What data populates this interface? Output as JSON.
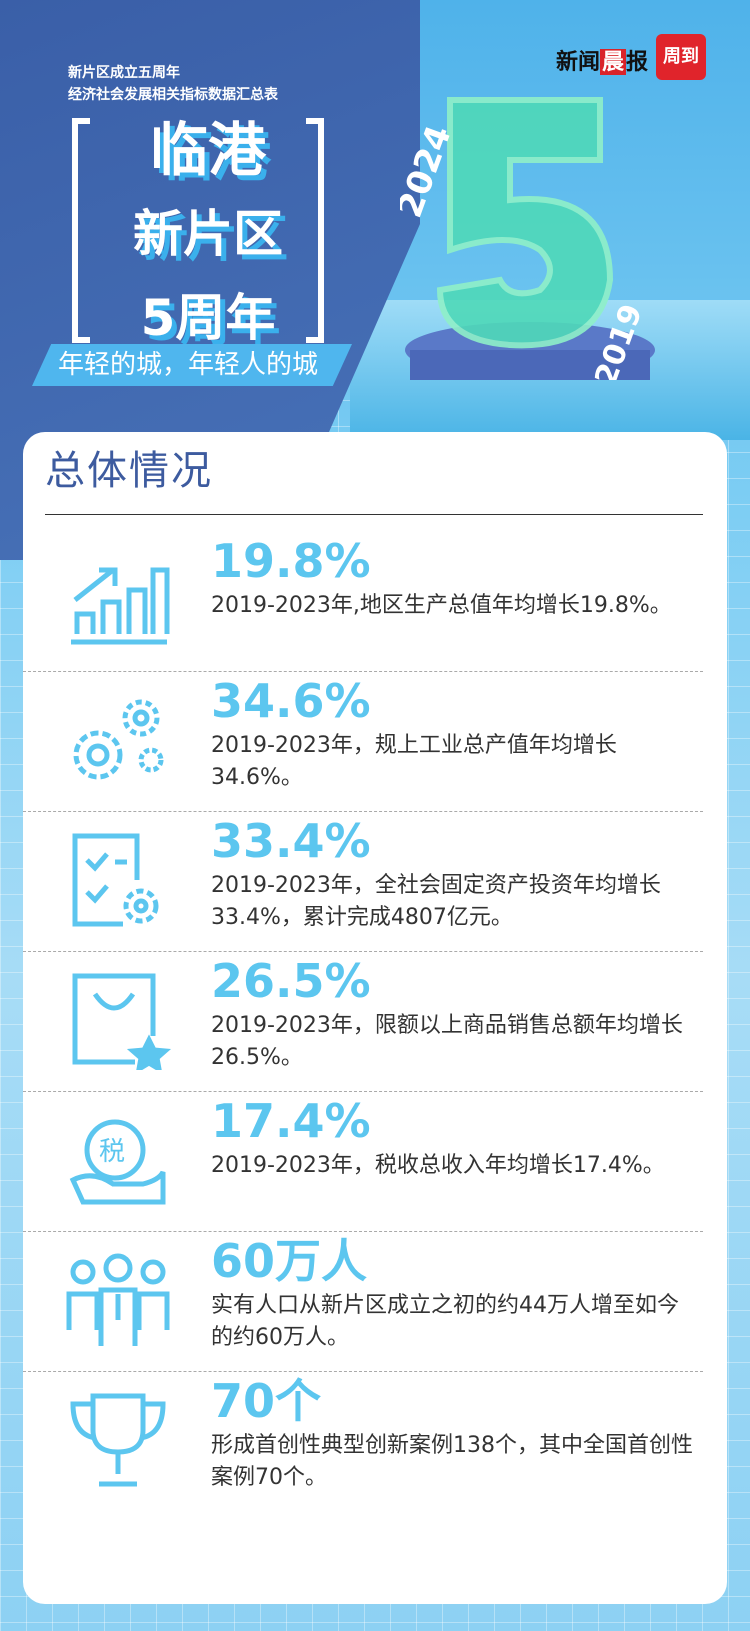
{
  "header": {
    "subtitle_line1": "新片区成立五周年",
    "subtitle_line2": "经济社会发展相关指标数据汇总表",
    "title_line1": "临港",
    "title_line2": "新片区",
    "title_line3": "5周年",
    "slogan": "年轻的城，年轻人的城",
    "logo_xinwen": "新闻",
    "logo_chen": "晨",
    "logo_bao": "报",
    "logo_zhoudao": "周到",
    "year_top": "2024",
    "year_bottom": "2019",
    "big_number": "5"
  },
  "section": {
    "title": "总体情况"
  },
  "accent_color": "#5cc6ef",
  "items": [
    {
      "icon": "growth-chart-icon",
      "value": "19.8%",
      "text": "2019-2023年,地区生产总值年均增长19.8%。"
    },
    {
      "icon": "gears-icon",
      "value": "34.6%",
      "text": "2019-2023年，规上工业总产值年均增长34.6%。"
    },
    {
      "icon": "checklist-gear-icon",
      "value": "33.4%",
      "text": "2019-2023年，全社会固定资产投资年均增长33.4%，累计完成4807亿元。"
    },
    {
      "icon": "shopping-bag-icon",
      "value": "26.5%",
      "text": "2019-2023年，限额以上商品销售总额年均增长26.5%。"
    },
    {
      "icon": "tax-hand-icon",
      "value": "17.4%",
      "text": "2019-2023年，税收总收入年均增长17.4%。",
      "icon_label": "税"
    },
    {
      "icon": "people-icon",
      "value": "60万人",
      "text": "实有人口从新片区成立之初的约44万人增至如今的约60万人。"
    },
    {
      "icon": "trophy-icon",
      "value": "70个",
      "text": "形成首创性典型创新案例138个，其中全国首创性案例70个。"
    }
  ]
}
